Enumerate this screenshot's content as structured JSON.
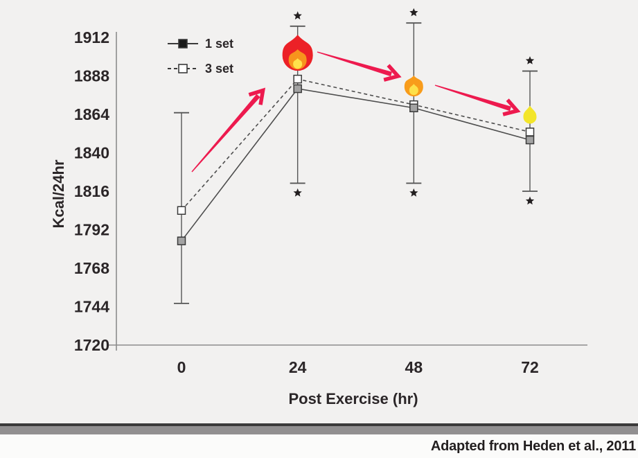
{
  "page": {
    "background": "#f2f1f0",
    "footer_background": "#fbfbfa"
  },
  "footer": {
    "attribution": "Adapted from Heden et al., 2011"
  },
  "chart_data": {
    "type": "line",
    "title": "",
    "xlabel": "Post Exercise (hr)",
    "ylabel": "Kcal/24hr",
    "x": [
      0,
      24,
      48,
      72
    ],
    "x_tick_labels": [
      "0",
      "24",
      "48",
      "72"
    ],
    "y_ticks": [
      1912,
      1888,
      1864,
      1840,
      1816,
      1792,
      1768,
      1744,
      1720
    ],
    "ylim": [
      1720,
      1912
    ],
    "grid": false,
    "legend_position": "top-left-inside",
    "legend": [
      {
        "label": "1 set",
        "line_style": "solid",
        "marker": "filled-square"
      },
      {
        "label": "3 set",
        "line_style": "dashed",
        "marker": "open-square"
      }
    ],
    "series": [
      {
        "name": "1 set",
        "line_style": "solid",
        "marker": "filled-square",
        "values": [
          1785,
          1880,
          1868,
          1848
        ]
      },
      {
        "name": "3 set",
        "line_style": "dashed",
        "marker": "open-square",
        "values": [
          1804,
          1886,
          1870,
          1853
        ]
      }
    ],
    "error_bars": [
      {
        "x": 0,
        "top": 1865,
        "bottom": 1746,
        "star_top": false,
        "star_bottom": false
      },
      {
        "x": 24,
        "top": 1919,
        "bottom": 1821,
        "star_top": true,
        "star_bottom": true
      },
      {
        "x": 48,
        "top": 1921,
        "bottom": 1821,
        "star_top": true,
        "star_bottom": true
      },
      {
        "x": 72,
        "top": 1891,
        "bottom": 1816,
        "star_top": true,
        "star_bottom": true
      }
    ],
    "significance_marker": "*",
    "annotations": {
      "flames": [
        {
          "at_x": 24,
          "size": "large",
          "colors": [
            "#ec2127",
            "#f7941d",
            "#ffe24b"
          ]
        },
        {
          "at_x": 48,
          "size": "medium",
          "colors": [
            "#f89c1b",
            "#fde04a"
          ]
        },
        {
          "at_x": 72,
          "size": "small",
          "colors": [
            "#f3e52a"
          ]
        }
      ],
      "arrows": [
        {
          "direction": "up-right",
          "from": [
            277,
            248
          ],
          "to": [
            373,
            138
          ]
        },
        {
          "direction": "right-down",
          "from": [
            458,
            75
          ],
          "to": [
            565,
            107
          ]
        },
        {
          "direction": "right-down",
          "from": [
            628,
            123
          ],
          "to": [
            737,
            157
          ]
        }
      ],
      "arrow_color": "#ed1a4e"
    },
    "colors": {
      "line": "#4d4d4d",
      "marker_fill_1set": "#a3a3a3",
      "marker_fill_3set": "#ffffff",
      "marker_stroke": "#3a3a3a",
      "legend_marker_fill_1set": "#1a1a1a",
      "text": "#2b2628",
      "axis": "#8c8c8c",
      "error_bar": "#555555"
    }
  }
}
